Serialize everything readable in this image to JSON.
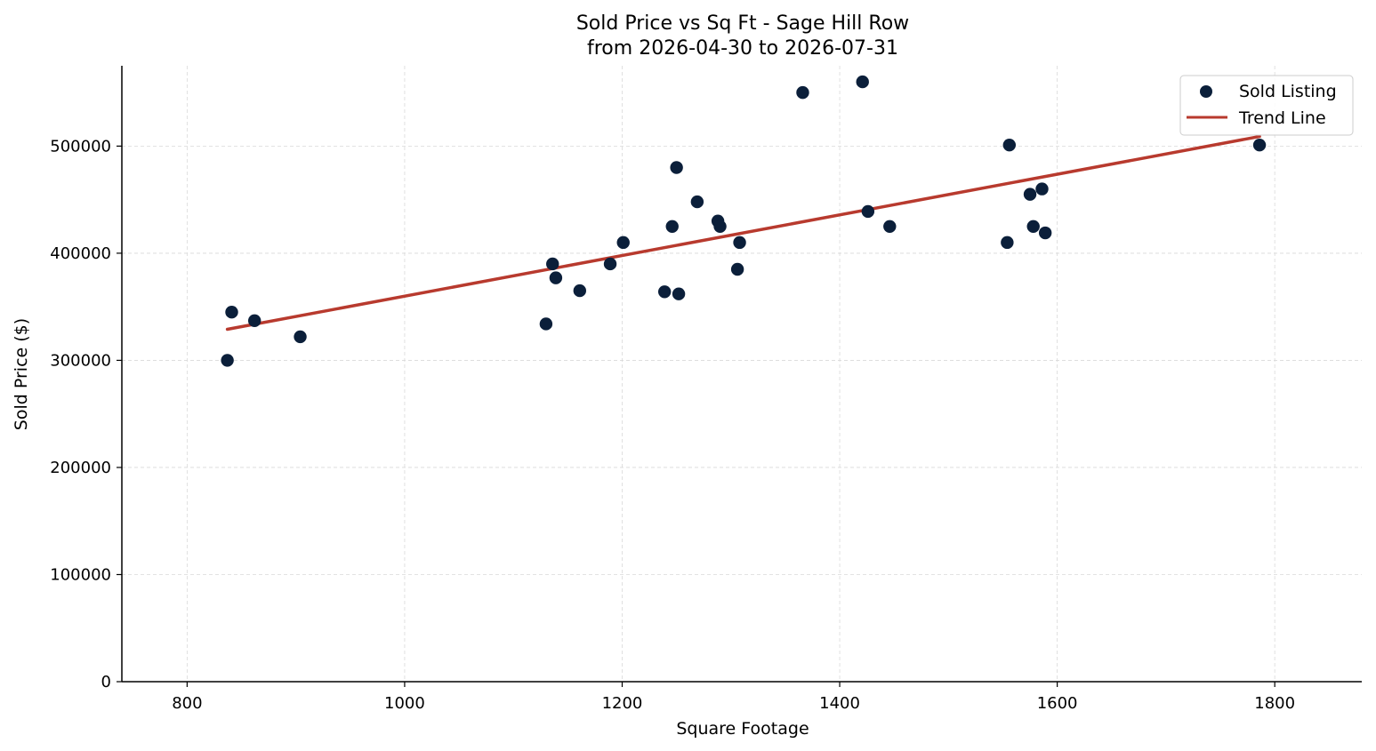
{
  "chart_data": {
    "type": "scatter",
    "title": "Sold Price vs Sq Ft - Sage Hill Row",
    "subtitle": "from 2026-04-30 to 2026-07-31",
    "xlabel": "Square Footage",
    "ylabel": "Sold Price ($)",
    "xlim": [
      740,
      1880
    ],
    "ylim": [
      0,
      575000
    ],
    "xticks": [
      800,
      1000,
      1200,
      1400,
      1600,
      1800
    ],
    "yticks": [
      0,
      100000,
      200000,
      300000,
      400000,
      500000
    ],
    "grid": true,
    "legend": {
      "position": "top-right",
      "entries": [
        "Sold Listing",
        "Trend Line"
      ]
    },
    "colors": {
      "points": "#0b1f3a",
      "trend": "#b83a2e",
      "grid": "#d9d9d9",
      "axis": "#000000"
    },
    "series": [
      {
        "name": "Sold Listing",
        "kind": "scatter",
        "points": [
          {
            "x": 837,
            "y": 300000
          },
          {
            "x": 841,
            "y": 345000
          },
          {
            "x": 862,
            "y": 337000
          },
          {
            "x": 904,
            "y": 322000
          },
          {
            "x": 1130,
            "y": 334000
          },
          {
            "x": 1136,
            "y": 390000
          },
          {
            "x": 1139,
            "y": 377000
          },
          {
            "x": 1161,
            "y": 365000
          },
          {
            "x": 1189,
            "y": 390000
          },
          {
            "x": 1201,
            "y": 410000
          },
          {
            "x": 1239,
            "y": 364000
          },
          {
            "x": 1246,
            "y": 425000
          },
          {
            "x": 1250,
            "y": 480000
          },
          {
            "x": 1252,
            "y": 362000
          },
          {
            "x": 1269,
            "y": 448000
          },
          {
            "x": 1288,
            "y": 430000
          },
          {
            "x": 1290,
            "y": 425000
          },
          {
            "x": 1306,
            "y": 385000
          },
          {
            "x": 1308,
            "y": 410000
          },
          {
            "x": 1366,
            "y": 550000
          },
          {
            "x": 1421,
            "y": 560000
          },
          {
            "x": 1426,
            "y": 439000
          },
          {
            "x": 1446,
            "y": 425000
          },
          {
            "x": 1554,
            "y": 410000
          },
          {
            "x": 1556,
            "y": 501000
          },
          {
            "x": 1575,
            "y": 455000
          },
          {
            "x": 1578,
            "y": 425000
          },
          {
            "x": 1586,
            "y": 460000
          },
          {
            "x": 1589,
            "y": 419000
          },
          {
            "x": 1786,
            "y": 501000
          }
        ]
      },
      {
        "name": "Trend Line",
        "kind": "line",
        "points": [
          {
            "x": 837,
            "y": 329000
          },
          {
            "x": 1786,
            "y": 509000
          }
        ]
      }
    ]
  }
}
